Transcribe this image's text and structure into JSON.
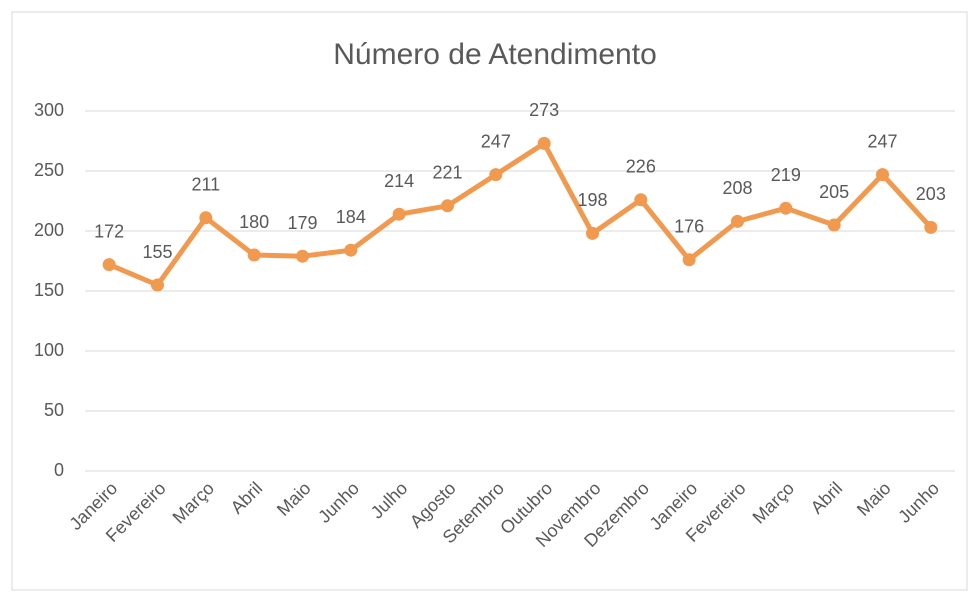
{
  "chart_data": {
    "type": "line",
    "title": "Número de Atendimento",
    "categories": [
      "Janeiro",
      "Fevereiro",
      "Março",
      "Abril",
      "Maio",
      "Junho",
      "Julho",
      "Agosto",
      "Setembro",
      "Outubro",
      "Novembro",
      "Dezembro",
      "Janeiro",
      "Fevereiro",
      "Março",
      "Abril",
      "Maio",
      "Junho"
    ],
    "series": [
      {
        "name": "Número de Atendimento",
        "color": "#f0994f",
        "values": [
          172,
          155,
          211,
          180,
          179,
          184,
          214,
          221,
          247,
          273,
          198,
          226,
          176,
          208,
          219,
          205,
          247,
          203
        ]
      }
    ],
    "ylim": [
      0,
      300
    ],
    "yticks": [
      0,
      50,
      100,
      150,
      200,
      250,
      300
    ],
    "grid": true
  }
}
